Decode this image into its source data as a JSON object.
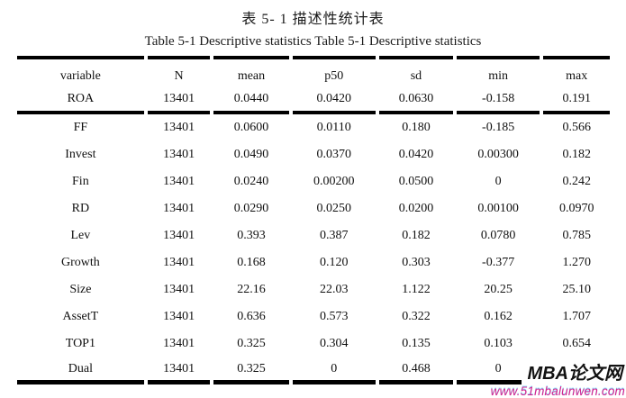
{
  "document": {
    "title_zh": "表 5- 1 描述性统计表",
    "title_en": "Table 5-1 Descriptive statistics Table 5-1 Descriptive statistics"
  },
  "table": {
    "columns": [
      "variable",
      "N",
      "mean",
      "p50",
      "sd",
      "min",
      "max"
    ],
    "rows": [
      [
        "ROA",
        "13401",
        "0.0440",
        "0.0420",
        "0.0630",
        "-0.158",
        "0.191"
      ],
      [
        "FF",
        "13401",
        "0.0600",
        "0.0110",
        "0.180",
        "-0.185",
        "0.566"
      ],
      [
        "Invest",
        "13401",
        "0.0490",
        "0.0370",
        "0.0420",
        "0.00300",
        "0.182"
      ],
      [
        "Fin",
        "13401",
        "0.0240",
        "0.00200",
        "0.0500",
        "0",
        "0.242"
      ],
      [
        "RD",
        "13401",
        "0.0290",
        "0.0250",
        "0.0200",
        "0.00100",
        "0.0970"
      ],
      [
        "Lev",
        "13401",
        "0.393",
        "0.387",
        "0.182",
        "0.0780",
        "0.785"
      ],
      [
        "Growth",
        "13401",
        "0.168",
        "0.120",
        "0.303",
        "-0.377",
        "1.270"
      ],
      [
        "Size",
        "13401",
        "22.16",
        "22.03",
        "1.122",
        "20.25",
        "25.10"
      ],
      [
        "AssetT",
        "13401",
        "0.636",
        "0.573",
        "0.322",
        "0.162",
        "1.707"
      ],
      [
        "TOP1",
        "13401",
        "0.325",
        "0.304",
        "0.135",
        "0.103",
        "0.654"
      ],
      [
        "Dual",
        "13401",
        "0.325",
        "0",
        "0.468",
        "0",
        ""
      ]
    ]
  },
  "watermark": {
    "brand": "MBA论文网",
    "url": "www.51mbalunwen.com",
    "brand_color": "#121212",
    "url_color": "#d61f8d"
  },
  "colors": {
    "rule": "#000000",
    "text": "#111111",
    "background": "#ffffff"
  }
}
